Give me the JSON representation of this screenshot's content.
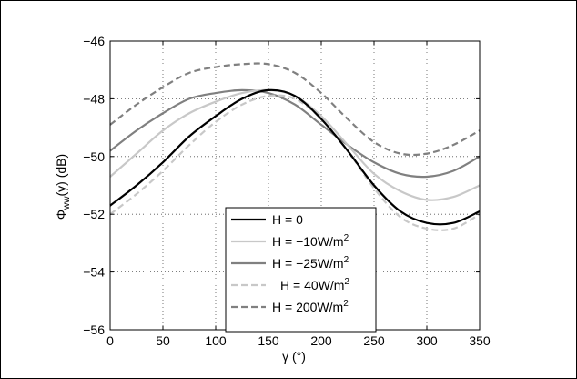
{
  "chart_data": {
    "type": "line",
    "xlabel": "γ (°)",
    "ylabel_main": "Φ",
    "ylabel_sub": "ww",
    "ylabel_rest": "(γ) (dB)",
    "xlim": [
      0,
      350
    ],
    "ylim": [
      -56,
      -46
    ],
    "xticks": [
      0,
      50,
      100,
      150,
      200,
      250,
      300,
      350
    ],
    "yticks": [
      -56,
      -54,
      -52,
      -50,
      -48,
      -46
    ],
    "ytick_labels": [
      "−56",
      "−54",
      "−52",
      "−50",
      "−48",
      "−46"
    ],
    "grid": true,
    "legend_position": "bottom-center",
    "x": [
      0,
      25,
      50,
      75,
      100,
      125,
      150,
      175,
      200,
      225,
      250,
      275,
      300,
      325,
      350
    ],
    "series": [
      {
        "name": "H = 0",
        "values": [
          -51.7,
          -51.0,
          -50.2,
          -49.3,
          -48.6,
          -48.0,
          -47.7,
          -47.9,
          -48.7,
          -49.8,
          -51.0,
          -51.9,
          -52.3,
          -52.3,
          -51.9
        ],
        "color": "#000000",
        "dash": "solid"
      },
      {
        "name_main": "H = −10W/m",
        "name_sup": "2",
        "values": [
          -50.7,
          -49.9,
          -49.1,
          -48.5,
          -48.1,
          -47.8,
          -47.7,
          -47.9,
          -48.6,
          -49.6,
          -50.6,
          -51.2,
          -51.5,
          -51.4,
          -51.0
        ],
        "color": "#c8c8c8",
        "dash": "solid"
      },
      {
        "name_main": "H = −25W/m",
        "name_sup": "2",
        "values": [
          -49.8,
          -49.1,
          -48.5,
          -48.0,
          -47.8,
          -47.7,
          -47.8,
          -48.2,
          -48.9,
          -49.6,
          -50.2,
          -50.6,
          -50.7,
          -50.5,
          -50.0
        ],
        "color": "#808080",
        "dash": "solid"
      },
      {
        "name_main": "H = 40W/m",
        "name_sup": "2",
        "values": [
          -52.0,
          -51.3,
          -50.5,
          -49.6,
          -48.8,
          -48.2,
          -47.9,
          -48.0,
          -48.7,
          -49.8,
          -51.1,
          -52.1,
          -52.5,
          -52.5,
          -52.0
        ],
        "color": "#c8c8c8",
        "dash": "dashed"
      },
      {
        "name_main": "H = 200W/m",
        "name_sup": "2",
        "values": [
          -48.9,
          -48.2,
          -47.6,
          -47.1,
          -46.9,
          -46.8,
          -46.8,
          -47.1,
          -47.8,
          -48.7,
          -49.5,
          -49.9,
          -49.9,
          -49.6,
          -49.1
        ],
        "color": "#808080",
        "dash": "dashed"
      }
    ]
  }
}
